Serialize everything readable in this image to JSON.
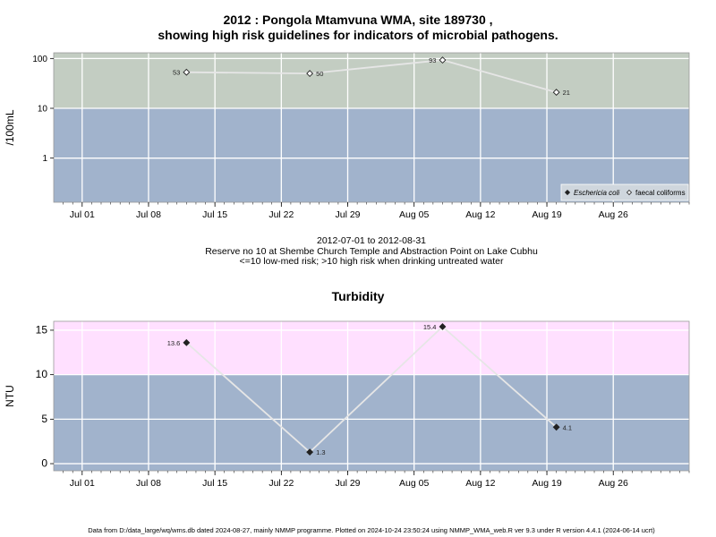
{
  "chart_data": [
    {
      "type": "line",
      "title_line1": "2012 : Pongola Mtamvuna WMA, site 189730 ,",
      "title_line2": "showing high risk guidelines for indicators of microbial pathogens.",
      "ylabel": "/100mL",
      "yscale": "log",
      "ylim": [
        0.13,
        130
      ],
      "yticks": [
        "100",
        "10",
        "1"
      ],
      "xticks": [
        "Jul 01",
        "Jul 08",
        "Jul 15",
        "Jul 22",
        "Jul 29",
        "Aug 05",
        "Aug 12",
        "Aug 19",
        "Aug 26"
      ],
      "risk_threshold": 10,
      "band_colors": {
        "high": "#c3cdc2",
        "low": "#a1b3cc"
      },
      "series": [
        {
          "name": "faecal coliforms",
          "marker": "open-diamond",
          "points": [
            {
              "date": "2012-07-12",
              "value": 53,
              "label": "53"
            },
            {
              "date": "2012-07-25",
              "value": 50,
              "label": "50"
            },
            {
              "date": "2012-08-08",
              "value": 93,
              "label": "93"
            },
            {
              "date": "2012-08-20",
              "value": 21,
              "label": "21"
            }
          ]
        },
        {
          "name": "Eschericia coli",
          "marker": "filled-diamond",
          "points": []
        }
      ],
      "legend": [
        "Eschericia coli",
        "faecal coliforms"
      ],
      "legend_position": "bottom-right"
    },
    {
      "type": "line",
      "title": "Turbidity",
      "ylabel": "NTU",
      "ylim": [
        -0.8,
        16
      ],
      "yticks": [
        "15",
        "10",
        "5",
        "0"
      ],
      "xticks": [
        "Jul 01",
        "Jul 08",
        "Jul 15",
        "Jul 22",
        "Jul 29",
        "Aug 05",
        "Aug 12",
        "Aug 19",
        "Aug 26"
      ],
      "risk_threshold": 10,
      "band_colors": {
        "high": "#ffe0ff",
        "low": "#a1b3cc"
      },
      "series": [
        {
          "marker": "filled-diamond",
          "points": [
            {
              "date": "2012-07-12",
              "value": 13.6,
              "label": "13.6"
            },
            {
              "date": "2012-07-25",
              "value": 1.3,
              "label": "1.3"
            },
            {
              "date": "2012-08-08",
              "value": 15.4,
              "label": "15.4"
            },
            {
              "date": "2012-08-20",
              "value": 4.1,
              "label": "4.1"
            }
          ]
        }
      ]
    }
  ],
  "subtitle": {
    "date_range": "2012-07-01 to 2012-08-31",
    "location": "Reserve no 10 at Shembe Church Temple and Abstraction Point on Lake Cubhu",
    "risk_note": "<=10 low-med risk; >10 high risk when drinking untreated water"
  },
  "footer": "Data from D:/data_large/wq/wms.db dated 2024-08-27, mainly NMMP programme. Plotted on 2024-10-24 23:50:24 using NMMP_WMA_web.R ver 9.3 under R version 4.4.1 (2024-06-14 ucrt)"
}
